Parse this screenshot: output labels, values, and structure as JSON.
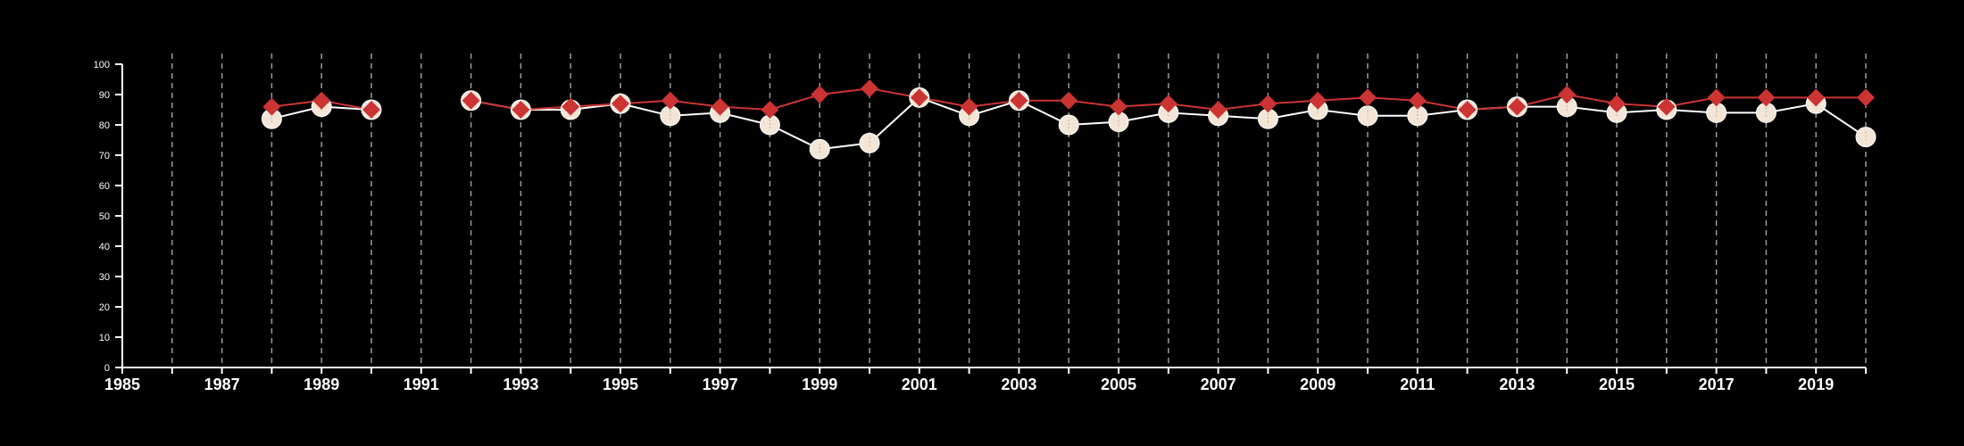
{
  "colors": {
    "background": "#000000",
    "axis": "#ffffff",
    "gridline": "#9a9a9a",
    "series_a_line": "#ffffff",
    "series_a_marker": "#f3e6d6",
    "series_b": "#cc3333"
  },
  "chart_data": {
    "type": "line",
    "title": "",
    "xlabel": "",
    "ylabel": "",
    "xlim": [
      1985,
      2020
    ],
    "ylim": [
      0,
      100
    ],
    "x_ticks": [
      1985,
      1987,
      1989,
      1991,
      1993,
      1995,
      1997,
      1999,
      2001,
      2003,
      2005,
      2007,
      2009,
      2011,
      2013,
      2015,
      2017,
      2019
    ],
    "y_ticks": [
      0,
      10,
      20,
      30,
      40,
      50,
      60,
      70,
      80,
      90,
      100
    ],
    "grid": "vertical dashed at every year",
    "legend": "none",
    "series": [
      {
        "marker": "circle",
        "color": "#f3e6d6",
        "points": [
          [
            1988,
            82
          ],
          [
            1989,
            86
          ],
          [
            1990,
            85
          ],
          [
            1992,
            88
          ],
          [
            1993,
            85
          ],
          [
            1994,
            85
          ],
          [
            1995,
            87
          ],
          [
            1996,
            83
          ],
          [
            1997,
            84
          ],
          [
            1998,
            80
          ],
          [
            1999,
            72
          ],
          [
            2000,
            74
          ],
          [
            2001,
            89
          ],
          [
            2002,
            83
          ],
          [
            2003,
            88
          ],
          [
            2004,
            80
          ],
          [
            2005,
            81
          ],
          [
            2006,
            84
          ],
          [
            2007,
            83
          ],
          [
            2008,
            82
          ],
          [
            2009,
            85
          ],
          [
            2010,
            83
          ],
          [
            2011,
            83
          ],
          [
            2012,
            85
          ],
          [
            2013,
            86
          ],
          [
            2014,
            86
          ],
          [
            2015,
            84
          ],
          [
            2016,
            85
          ],
          [
            2017,
            84
          ],
          [
            2018,
            84
          ],
          [
            2019,
            87
          ],
          [
            2020,
            76
          ]
        ]
      },
      {
        "marker": "diamond",
        "color": "#cc3333",
        "points": [
          [
            1988,
            86
          ],
          [
            1989,
            88
          ],
          [
            1990,
            85
          ],
          [
            1992,
            88
          ],
          [
            1993,
            85
          ],
          [
            1994,
            86
          ],
          [
            1995,
            87
          ],
          [
            1996,
            88
          ],
          [
            1997,
            86
          ],
          [
            1998,
            85
          ],
          [
            1999,
            90
          ],
          [
            2000,
            92
          ],
          [
            2001,
            89
          ],
          [
            2002,
            86
          ],
          [
            2003,
            88
          ],
          [
            2004,
            88
          ],
          [
            2005,
            86
          ],
          [
            2006,
            87
          ],
          [
            2007,
            85
          ],
          [
            2008,
            87
          ],
          [
            2009,
            88
          ],
          [
            2010,
            89
          ],
          [
            2011,
            88
          ],
          [
            2012,
            85
          ],
          [
            2013,
            86
          ],
          [
            2014,
            90
          ],
          [
            2015,
            87
          ],
          [
            2016,
            86
          ],
          [
            2017,
            89
          ],
          [
            2018,
            89
          ],
          [
            2019,
            89
          ],
          [
            2020,
            89
          ]
        ]
      }
    ]
  }
}
